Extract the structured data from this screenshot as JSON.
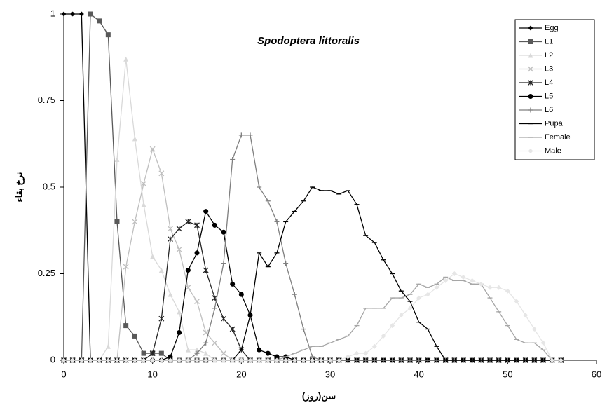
{
  "chart_data": {
    "type": "line",
    "title": "Spodoptera littoralis",
    "x_label": "سن(روز)",
    "y_label": "نرخ بقاء",
    "x": [
      0,
      1,
      2,
      3,
      4,
      5,
      6,
      7,
      8,
      9,
      10,
      11,
      12,
      13,
      14,
      15,
      16,
      17,
      18,
      19,
      20,
      21,
      22,
      23,
      24,
      25,
      26,
      27,
      28,
      29,
      30,
      31,
      32,
      33,
      34,
      35,
      36,
      37,
      38,
      39,
      40,
      41,
      42,
      43,
      44,
      45,
      46,
      47,
      48,
      49,
      50,
      51,
      52,
      53,
      54,
      55,
      56
    ],
    "xlim": [
      0,
      60
    ],
    "xticks": [
      0,
      10,
      20,
      30,
      40,
      50,
      60
    ],
    "ylim": [
      0,
      1
    ],
    "yticks": [
      0,
      0.25,
      0.5,
      0.75,
      1
    ],
    "legend": "top-right",
    "series": [
      {
        "name": "Egg",
        "color": "#000000",
        "marker": "diamond",
        "values": [
          1,
          1,
          1,
          0,
          0,
          0,
          0,
          0,
          0,
          0,
          0,
          0,
          0,
          0,
          0,
          0,
          0,
          0,
          0,
          0,
          0,
          0,
          0,
          0,
          0,
          0,
          0,
          0,
          0,
          0,
          0,
          0,
          0,
          0,
          0,
          0,
          0,
          0,
          0,
          0,
          0,
          0,
          0,
          0,
          0,
          0,
          0,
          0,
          0,
          0,
          0,
          0,
          0,
          0,
          0,
          0,
          0
        ]
      },
      {
        "name": "L1",
        "color": "#595959",
        "marker": "square",
        "values": [
          0,
          0,
          0,
          1,
          0.98,
          0.94,
          0.4,
          0.1,
          0.07,
          0.02,
          0.02,
          0.02,
          0,
          0,
          0,
          0,
          0,
          0,
          0,
          0,
          0,
          0,
          0,
          0,
          0,
          0,
          0,
          0,
          0,
          0,
          0,
          0,
          0,
          0,
          0,
          0,
          0,
          0,
          0,
          0,
          0,
          0,
          0,
          0,
          0,
          0,
          0,
          0,
          0,
          0,
          0,
          0,
          0,
          0,
          0,
          0,
          0
        ]
      },
      {
        "name": "L2",
        "color": "#d9d9d9",
        "marker": "triangle",
        "values": [
          0,
          0,
          0,
          0,
          0,
          0.04,
          0.58,
          0.87,
          0.64,
          0.45,
          0.3,
          0.26,
          0.19,
          0.14,
          0.03,
          0.03,
          0.02,
          0,
          0,
          0,
          0,
          0,
          0,
          0,
          0,
          0,
          0,
          0,
          0,
          0,
          0,
          0,
          0,
          0,
          0,
          0,
          0,
          0,
          0,
          0,
          0,
          0,
          0,
          0,
          0,
          0,
          0,
          0,
          0,
          0,
          0,
          0,
          0,
          0,
          0,
          0,
          0
        ]
      },
      {
        "name": "L3",
        "color": "#bfbfbf",
        "marker": "x",
        "values": [
          0,
          0,
          0,
          0,
          0,
          0,
          0,
          0.27,
          0.4,
          0.51,
          0.61,
          0.54,
          0.38,
          0.32,
          0.21,
          0.17,
          0.08,
          0.05,
          0.02,
          0,
          0,
          0,
          0,
          0,
          0,
          0,
          0,
          0,
          0,
          0,
          0,
          0,
          0,
          0,
          0,
          0,
          0,
          0,
          0,
          0,
          0,
          0,
          0,
          0,
          0,
          0,
          0,
          0,
          0,
          0,
          0,
          0,
          0,
          0,
          0,
          0,
          0
        ]
      },
      {
        "name": "L4",
        "color": "#262626",
        "marker": "star",
        "values": [
          0,
          0,
          0,
          0,
          0,
          0,
          0,
          0,
          0,
          0,
          0.02,
          0.12,
          0.35,
          0.38,
          0.4,
          0.39,
          0.26,
          0.18,
          0.12,
          0.09,
          0.03,
          0,
          0,
          0,
          0,
          0,
          0,
          0,
          0,
          0,
          0,
          0,
          0,
          0,
          0,
          0,
          0,
          0,
          0,
          0,
          0,
          0,
          0,
          0,
          0,
          0,
          0,
          0,
          0,
          0,
          0,
          0,
          0,
          0,
          0,
          0,
          0
        ]
      },
      {
        "name": "L5",
        "color": "#000000",
        "marker": "circle",
        "values": [
          0,
          0,
          0,
          0,
          0,
          0,
          0,
          0,
          0,
          0,
          0,
          0,
          0.01,
          0.08,
          0.26,
          0.31,
          0.43,
          0.39,
          0.37,
          0.22,
          0.19,
          0.13,
          0.03,
          0.02,
          0.01,
          0.01,
          0,
          0,
          0,
          0,
          0,
          0,
          0,
          0,
          0,
          0,
          0,
          0,
          0,
          0,
          0,
          0,
          0,
          0,
          0,
          0,
          0,
          0,
          0,
          0,
          0,
          0,
          0,
          0,
          0,
          0,
          0
        ]
      },
      {
        "name": "L6",
        "color": "#7f7f7f",
        "marker": "plus",
        "values": [
          0,
          0,
          0,
          0,
          0,
          0,
          0,
          0,
          0,
          0,
          0,
          0,
          0,
          0,
          0,
          0.02,
          0.05,
          0.15,
          0.28,
          0.58,
          0.65,
          0.65,
          0.5,
          0.46,
          0.4,
          0.28,
          0.19,
          0.09,
          0.01,
          0,
          0,
          0,
          0,
          0,
          0,
          0,
          0,
          0,
          0,
          0,
          0,
          0,
          0,
          0,
          0,
          0,
          0,
          0,
          0,
          0,
          0,
          0,
          0,
          0,
          0,
          0,
          0
        ]
      },
      {
        "name": "Pupa",
        "color": "#000000",
        "marker": "dash",
        "values": [
          0,
          0,
          0,
          0,
          0,
          0,
          0,
          0,
          0,
          0,
          0,
          0,
          0,
          0,
          0,
          0,
          0,
          0,
          0,
          0,
          0.03,
          0.13,
          0.31,
          0.27,
          0.31,
          0.4,
          0.43,
          0.46,
          0.5,
          0.49,
          0.49,
          0.48,
          0.49,
          0.45,
          0.36,
          0.34,
          0.29,
          0.25,
          0.2,
          0.17,
          0.11,
          0.09,
          0.04,
          0,
          0,
          0,
          0,
          0,
          0,
          0,
          0,
          0,
          0,
          0,
          0,
          0,
          0
        ]
      },
      {
        "name": "Female",
        "color": "#a6a6a6",
        "marker": "dash",
        "values": [
          0,
          0,
          0,
          0,
          0,
          0,
          0,
          0,
          0,
          0,
          0,
          0,
          0,
          0,
          0,
          0,
          0,
          0,
          0,
          0,
          0,
          0,
          0,
          0,
          0,
          0.01,
          0.02,
          0.03,
          0.04,
          0.04,
          0.05,
          0.06,
          0.07,
          0.1,
          0.15,
          0.15,
          0.15,
          0.18,
          0.18,
          0.19,
          0.22,
          0.21,
          0.22,
          0.24,
          0.23,
          0.23,
          0.22,
          0.22,
          0.18,
          0.14,
          0.1,
          0.06,
          0.05,
          0.05,
          0.03,
          0,
          0
        ]
      },
      {
        "name": "Male",
        "color": "#e6e6e6",
        "marker": "diamond",
        "values": [
          0,
          0,
          0,
          0,
          0,
          0,
          0,
          0,
          0,
          0,
          0,
          0,
          0,
          0,
          0,
          0,
          0,
          0,
          0,
          0,
          0,
          0,
          0,
          0,
          0,
          0,
          0,
          0,
          0,
          0,
          0,
          0,
          0.01,
          0.02,
          0.02,
          0.04,
          0.07,
          0.1,
          0.13,
          0.15,
          0.18,
          0.19,
          0.21,
          0.23,
          0.25,
          0.24,
          0.23,
          0.22,
          0.21,
          0.21,
          0.2,
          0.17,
          0.13,
          0.09,
          0.05,
          0,
          0
        ]
      }
    ]
  }
}
